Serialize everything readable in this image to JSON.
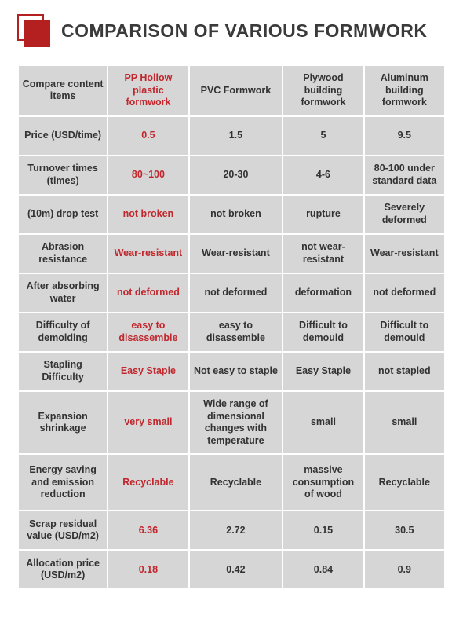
{
  "title": "COMPARISON OF VARIOUS FORMWORK",
  "accent_color": "#b41f1f",
  "highlight_color": "#c1272d",
  "cell_bg": "#d6d6d6",
  "columns": [
    "Compare content items",
    "PP Hollow plastic formwork",
    "PVC Formwork",
    "Plywood building formwork",
    "Aluminum building formwork"
  ],
  "rows": [
    {
      "label": "Price (USD/time)",
      "cells": [
        "0.5",
        "1.5",
        "5",
        "9.5"
      ]
    },
    {
      "label": "Turnover times (times)",
      "cells": [
        "80~100",
        "20-30",
        "4-6",
        "80-100 under standard data"
      ]
    },
    {
      "label": "(10m) drop test",
      "cells": [
        "not broken",
        "not broken",
        "rupture",
        "Severely deformed"
      ]
    },
    {
      "label": "Abrasion resistance",
      "cells": [
        "Wear-resistant",
        "Wear-resistant",
        "not wear-resistant",
        "Wear-resistant"
      ]
    },
    {
      "label": "After absorbing water",
      "cells": [
        "not deformed",
        "not deformed",
        "deformation",
        "not deformed"
      ]
    },
    {
      "label": "Difficulty of demolding",
      "cells": [
        "easy to disassemble",
        "easy to disassemble",
        "Difficult to demould",
        "Difficult to demould"
      ]
    },
    {
      "label": "Stapling Difficulty",
      "cells": [
        "Easy Staple",
        "Not easy to staple",
        "Easy Staple",
        "not stapled"
      ]
    },
    {
      "label": "Expansion shrinkage",
      "cells": [
        "very small",
        "Wide range of dimensional changes with temperature",
        "small",
        "small"
      ],
      "tall": true
    },
    {
      "label": "Energy saving and emission reduction",
      "cells": [
        "Recyclable",
        "Recyclable",
        "massive consumption of wood",
        "Recyclable"
      ],
      "tall": true
    },
    {
      "label": "Scrap residual value (USD/m2)",
      "cells": [
        "6.36",
        "2.72",
        "0.15",
        "30.5"
      ]
    },
    {
      "label": "Allocation price (USD/m2)",
      "cells": [
        "0.18",
        "0.42",
        "0.84",
        "0.9"
      ]
    }
  ]
}
